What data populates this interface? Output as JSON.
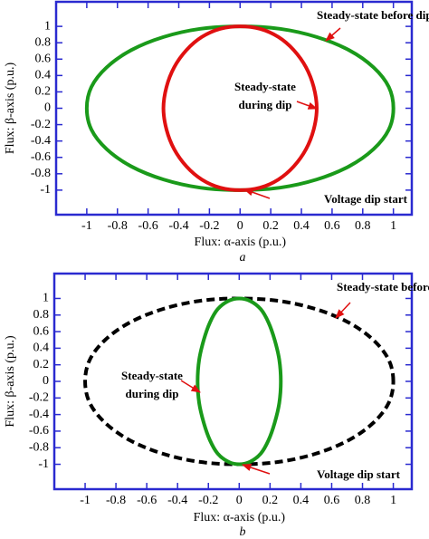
{
  "chart_data": [
    {
      "type": "line",
      "caption": "a",
      "xlabel": "Flux: α-axis (p.u.)",
      "ylabel": "Flux: β-axis (p.u.)",
      "xlim": [
        -1.2,
        1.12
      ],
      "ylim": [
        -1.3,
        1.3
      ],
      "xticks": [
        -1,
        -0.8,
        -0.6,
        -0.4,
        -0.2,
        0,
        0.2,
        0.4,
        0.6,
        0.8,
        1
      ],
      "yticks": [
        -1,
        -0.8,
        -0.6,
        -0.4,
        -0.2,
        0,
        0.2,
        0.4,
        0.6,
        0.8,
        1
      ],
      "series": [
        {
          "name": "Steady-state before dip",
          "color": "#1a9a1a",
          "dash": false,
          "x": [
            1,
            0.97,
            0.87,
            0.71,
            0.5,
            0.26,
            0,
            -0.26,
            -0.5,
            -0.71,
            -0.87,
            -0.97,
            -1,
            -0.97,
            -0.87,
            -0.71,
            -0.5,
            -0.26,
            0,
            0.26,
            0.5,
            0.71,
            0.87,
            0.97,
            1
          ],
          "y": [
            0,
            0.26,
            0.5,
            0.71,
            0.87,
            0.97,
            1,
            0.97,
            0.87,
            0.71,
            0.5,
            0.26,
            0,
            -0.26,
            -0.5,
            -0.71,
            -0.87,
            -0.97,
            -1,
            -0.97,
            -0.87,
            -0.71,
            -0.5,
            -0.26,
            0
          ]
        },
        {
          "name": "Steady-state during dip",
          "color": "#e01010",
          "dash": false,
          "x": [
            0.5,
            0.48,
            0.43,
            0.35,
            0.25,
            0.13,
            0,
            -0.13,
            -0.25,
            -0.35,
            -0.43,
            -0.48,
            -0.5,
            -0.48,
            -0.43,
            -0.35,
            -0.25,
            -0.13,
            0,
            0.13,
            0.25,
            0.35,
            0.43,
            0.48,
            0.5
          ],
          "y": [
            0,
            0.26,
            0.5,
            0.71,
            0.87,
            0.97,
            1,
            0.97,
            0.87,
            0.71,
            0.5,
            0.26,
            0,
            -0.26,
            -0.5,
            -0.71,
            -0.87,
            -0.97,
            -1,
            -0.97,
            -0.87,
            -0.71,
            -0.5,
            -0.26,
            0
          ]
        }
      ],
      "annotations": [
        [
          "Steady-state before dip"
        ],
        [
          "Steady-state",
          "during dip"
        ],
        [
          "Voltage dip start"
        ]
      ]
    },
    {
      "type": "line",
      "caption": "b",
      "xlabel": "Flux: α-axis (p.u.)",
      "ylabel": "Flux: β-axis (p.u.)",
      "xlim": [
        -1.2,
        1.12
      ],
      "ylim": [
        -1.3,
        1.3
      ],
      "xticks": [
        -1,
        -0.8,
        -0.6,
        -0.4,
        -0.2,
        0,
        0.2,
        0.4,
        0.6,
        0.8,
        1
      ],
      "yticks": [
        -1,
        -0.8,
        -0.6,
        -0.4,
        -0.2,
        0,
        0.2,
        0.4,
        0.6,
        0.8,
        1
      ],
      "series": [
        {
          "name": "Steady-state before dip",
          "color": "#000000",
          "dash": true,
          "x": [
            1,
            0.97,
            0.87,
            0.71,
            0.5,
            0.26,
            0,
            -0.26,
            -0.5,
            -0.71,
            -0.87,
            -0.97,
            -1,
            -0.97,
            -0.87,
            -0.71,
            -0.5,
            -0.26,
            0,
            0.26,
            0.5,
            0.71,
            0.87,
            0.97,
            1
          ],
          "y": [
            0,
            0.26,
            0.5,
            0.71,
            0.87,
            0.97,
            1,
            0.97,
            0.87,
            0.71,
            0.5,
            0.26,
            0,
            -0.26,
            -0.5,
            -0.71,
            -0.87,
            -0.97,
            -1,
            -0.97,
            -0.87,
            -0.71,
            -0.5,
            -0.26,
            0
          ]
        },
        {
          "name": "Steady-state during dip",
          "color": "#1a9a1a",
          "dash": false,
          "x": [
            0.27,
            0.26,
            0.23,
            0.19,
            0.14,
            0.07,
            0,
            -0.07,
            -0.14,
            -0.19,
            -0.23,
            -0.26,
            -0.27,
            -0.26,
            -0.23,
            -0.19,
            -0.14,
            -0.07,
            0,
            0.07,
            0.14,
            0.19,
            0.23,
            0.26,
            0.27
          ],
          "y": [
            0,
            0.26,
            0.5,
            0.71,
            0.87,
            0.97,
            1,
            0.97,
            0.87,
            0.71,
            0.5,
            0.26,
            0,
            -0.26,
            -0.5,
            -0.71,
            -0.87,
            -0.97,
            -1,
            -0.97,
            -0.87,
            -0.71,
            -0.5,
            -0.26,
            0
          ]
        }
      ],
      "annotations": [
        [
          "Steady-state before dip"
        ],
        [
          "Steady-state",
          "during dip"
        ],
        [
          "Voltage dip start"
        ]
      ]
    }
  ]
}
